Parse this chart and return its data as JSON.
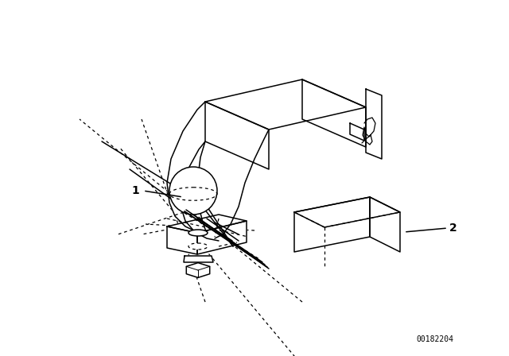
{
  "background_color": "#ffffff",
  "line_color": "#000000",
  "label1": "1",
  "label2": "2",
  "part_number": "00182204",
  "fig_width": 6.4,
  "fig_height": 4.48,
  "dpi": 100,
  "lw": 1.1,
  "dlw": 0.9,
  "dash_pattern": [
    3,
    3
  ]
}
